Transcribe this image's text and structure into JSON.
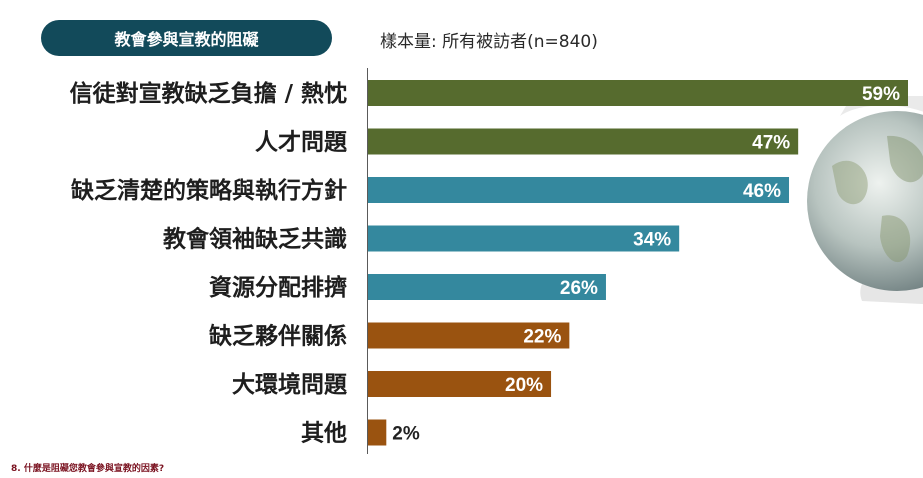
{
  "header": {
    "title": "教會參與宣教的阻礙",
    "sample": "樣本量: 所有被訪者(n=840)"
  },
  "footnote": "8. 什麼是阻礙您教會參與宣教的因素?",
  "colors": {
    "title_bg": "#124a5a",
    "olive": "#566b2e",
    "teal": "#34889e",
    "brown": "#9a5310"
  },
  "chart_data": {
    "type": "bar",
    "orientation": "horizontal",
    "categories": [
      "信徒對宣教缺乏負擔 / 熱忱",
      "人才問題",
      "缺乏清楚的策略與執行方針",
      "教會領袖缺乏共識",
      "資源分配排擠",
      "缺乏夥伴關係",
      "大環境問題",
      "其他"
    ],
    "values": [
      59,
      47,
      46,
      34,
      26,
      22,
      20,
      2
    ],
    "value_labels": [
      "59%",
      "47%",
      "46%",
      "34%",
      "26%",
      "22%",
      "20%",
      "2%"
    ],
    "bar_colors": [
      "#566b2e",
      "#566b2e",
      "#34889e",
      "#34889e",
      "#34889e",
      "#9a5310",
      "#9a5310",
      "#9a5310"
    ],
    "unit": "%",
    "xlim": [
      0,
      59
    ],
    "grid": false,
    "legend": "none"
  }
}
